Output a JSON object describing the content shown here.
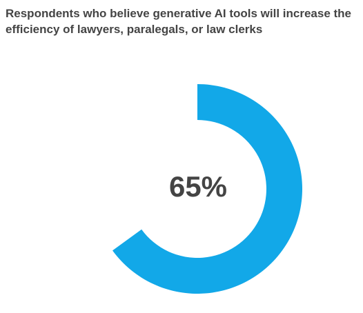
{
  "chart_data": {
    "type": "donut",
    "title": "Respondents who believe generative AI tools will increase the efficiency of lawyers, paralegals, or law clerks",
    "values": [
      65
    ],
    "value_labels": [
      "65%"
    ],
    "color": "#12a8e8"
  }
}
